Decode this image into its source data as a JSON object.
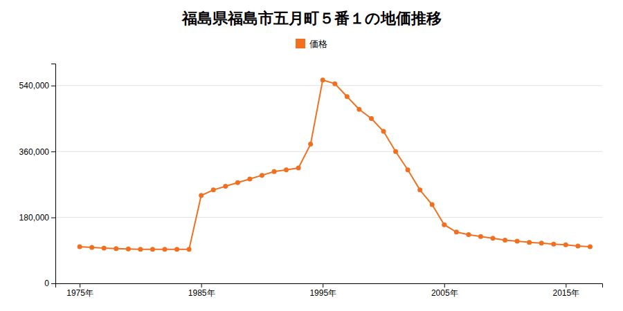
{
  "chart_data": {
    "type": "line",
    "title": "福島県福島市五月町５番１の地価推移",
    "x": [
      1975,
      1976,
      1977,
      1978,
      1979,
      1980,
      1981,
      1982,
      1983,
      1984,
      1985,
      1986,
      1987,
      1988,
      1989,
      1990,
      1991,
      1992,
      1993,
      1994,
      1995,
      1996,
      1997,
      1998,
      1999,
      2000,
      2001,
      2002,
      2003,
      2004,
      2005,
      2006,
      2007,
      2008,
      2009,
      2010,
      2011,
      2012,
      2013,
      2014,
      2015,
      2016,
      2017
    ],
    "series": [
      {
        "name": "価格",
        "color": "#f07020",
        "marker": "circle",
        "line_style": "solid",
        "values": [
          100000,
          98000,
          96000,
          95000,
          94000,
          93000,
          93000,
          93000,
          93000,
          93000,
          240000,
          255000,
          265000,
          275000,
          285000,
          295000,
          305000,
          310000,
          315000,
          380000,
          555000,
          545000,
          510000,
          475000,
          450000,
          415000,
          360000,
          310000,
          255000,
          215000,
          160000,
          140000,
          133000,
          128000,
          123000,
          118000,
          115000,
          112000,
          110000,
          107000,
          105000,
          102000,
          100000
        ]
      }
    ],
    "xlim": [
      1973,
      2018
    ],
    "xticks": [
      {
        "value": 1975,
        "label": "1975年"
      },
      {
        "value": 1985,
        "label": "1985年"
      },
      {
        "value": 1995,
        "label": "1995年"
      },
      {
        "value": 2005,
        "label": "2005年"
      },
      {
        "value": 2015,
        "label": "2015年"
      }
    ],
    "ylim": [
      0,
      600000
    ],
    "yticks": [
      0,
      {
        "value": 180000,
        "label": "180,000"
      },
      {
        "value": 360000,
        "label": "360,000"
      },
      {
        "value": 540000,
        "label": "540,000"
      }
    ],
    "grid": "y",
    "legend": "top"
  }
}
